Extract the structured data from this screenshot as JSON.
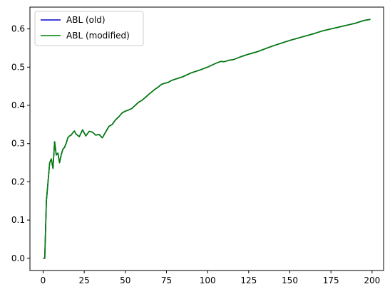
{
  "chart_data": {
    "type": "line",
    "title": "",
    "xlabel": "",
    "ylabel": "",
    "xlim": [
      -8,
      207
    ],
    "ylim": [
      -0.032,
      0.657
    ],
    "xticks": [
      0,
      25,
      50,
      75,
      100,
      125,
      150,
      175,
      200
    ],
    "xtick_labels": [
      "0",
      "25",
      "50",
      "75",
      "100",
      "125",
      "150",
      "175",
      "200"
    ],
    "yticks": [
      0.0,
      0.1,
      0.2,
      0.3,
      0.4,
      0.5,
      0.6
    ],
    "ytick_labels": [
      "0.0",
      "0.1",
      "0.2",
      "0.3",
      "0.4",
      "0.5",
      "0.6"
    ],
    "grid": false,
    "legend_position": "upper-left",
    "x": [
      0,
      1,
      2,
      3,
      4,
      5,
      6,
      7,
      8,
      9,
      10,
      11,
      12,
      13,
      14,
      15,
      16,
      17,
      18,
      19,
      20,
      22,
      24,
      25,
      26,
      28,
      30,
      32,
      34,
      36,
      38,
      40,
      42,
      44,
      46,
      48,
      50,
      52,
      54,
      56,
      58,
      60,
      62,
      64,
      66,
      68,
      70,
      72,
      74,
      76,
      78,
      80,
      85,
      90,
      95,
      100,
      105,
      108,
      110,
      113,
      116,
      120,
      125,
      130,
      135,
      140,
      145,
      150,
      155,
      160,
      165,
      170,
      175,
      180,
      185,
      190,
      195,
      199
    ],
    "series": [
      {
        "name": "ABL (old)",
        "color": "#0000cc",
        "y": [
          0.0,
          0.0,
          0.15,
          0.2,
          0.25,
          0.26,
          0.235,
          0.305,
          0.27,
          0.275,
          0.25,
          0.27,
          0.285,
          0.29,
          0.3,
          0.315,
          0.32,
          0.322,
          0.328,
          0.333,
          0.325,
          0.318,
          0.336,
          0.328,
          0.32,
          0.332,
          0.33,
          0.322,
          0.324,
          0.315,
          0.33,
          0.345,
          0.35,
          0.362,
          0.37,
          0.38,
          0.385,
          0.388,
          0.392,
          0.4,
          0.408,
          0.413,
          0.42,
          0.428,
          0.435,
          0.442,
          0.448,
          0.455,
          0.458,
          0.46,
          0.465,
          0.468,
          0.475,
          0.485,
          0.492,
          0.5,
          0.51,
          0.515,
          0.514,
          0.518,
          0.52,
          0.527,
          0.534,
          0.54,
          0.548,
          0.556,
          0.563,
          0.57,
          0.576,
          0.582,
          0.588,
          0.595,
          0.6,
          0.605,
          0.61,
          0.615,
          0.622,
          0.625
        ]
      },
      {
        "name": "ABL (modified)",
        "color": "#008000",
        "y": [
          0.0,
          0.0,
          0.15,
          0.2,
          0.25,
          0.26,
          0.235,
          0.305,
          0.27,
          0.275,
          0.25,
          0.27,
          0.285,
          0.29,
          0.3,
          0.315,
          0.32,
          0.322,
          0.328,
          0.333,
          0.325,
          0.318,
          0.336,
          0.328,
          0.32,
          0.332,
          0.33,
          0.322,
          0.324,
          0.315,
          0.33,
          0.345,
          0.35,
          0.362,
          0.37,
          0.38,
          0.385,
          0.388,
          0.392,
          0.4,
          0.408,
          0.413,
          0.42,
          0.428,
          0.435,
          0.442,
          0.448,
          0.455,
          0.458,
          0.46,
          0.465,
          0.468,
          0.475,
          0.485,
          0.492,
          0.5,
          0.51,
          0.515,
          0.514,
          0.518,
          0.52,
          0.527,
          0.534,
          0.54,
          0.548,
          0.556,
          0.563,
          0.57,
          0.576,
          0.582,
          0.588,
          0.595,
          0.6,
          0.605,
          0.61,
          0.615,
          0.622,
          0.625
        ]
      }
    ]
  }
}
